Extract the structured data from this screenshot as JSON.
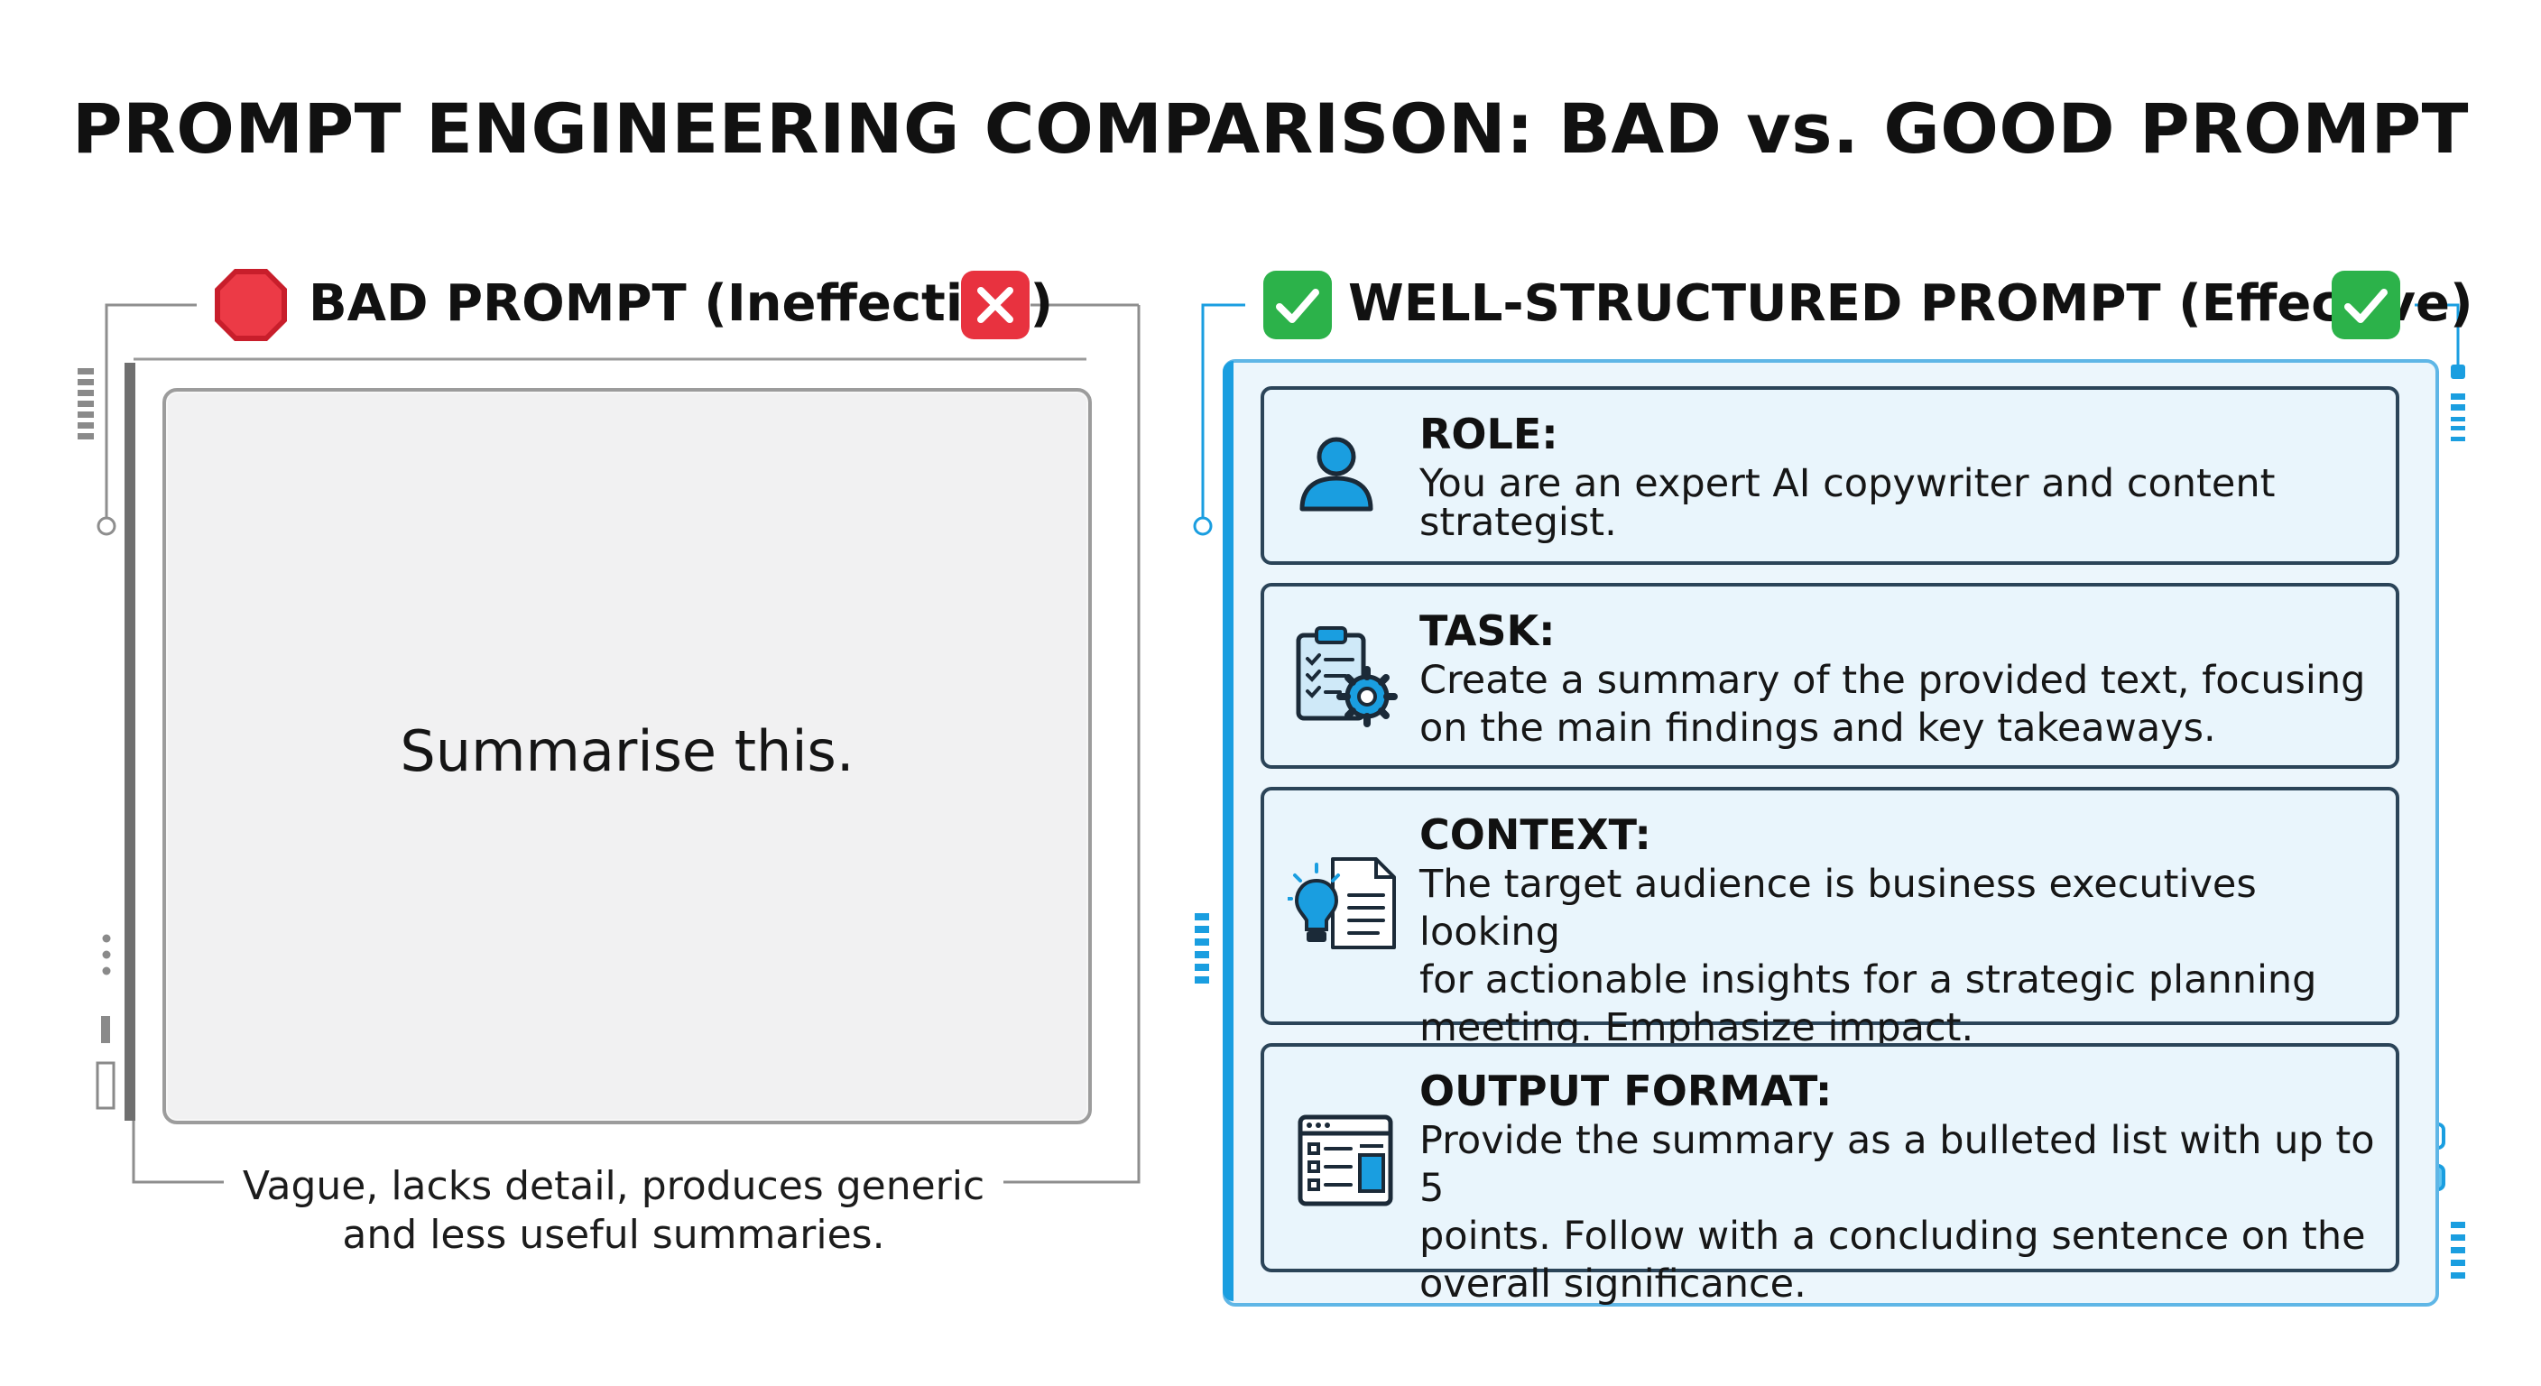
{
  "title": "PROMPT ENGINEERING COMPARISON: BAD vs. GOOD PROMPT",
  "bad_panel": {
    "heading": "BAD PROMPT (Ineffective)",
    "left_icon": "stop-sign-icon",
    "right_icon": "x-mark-icon",
    "prompt_text": "Summarise this.",
    "caption_line1": "Vague, lacks detail, produces generic",
    "caption_line2": "and less useful summaries."
  },
  "good_panel": {
    "heading": "WELL-STRUCTURED PROMPT (Effective)",
    "left_icon": "checkmark-icon",
    "right_icon": "checkmark-icon",
    "sections": [
      {
        "label": "ROLE:",
        "icon": "user-icon",
        "lines": [
          "You are an expert AI copywriter and content",
          "strategist."
        ]
      },
      {
        "label": "TASK:",
        "icon": "clipboard-gear-icon",
        "lines": [
          "Create a summary of the provided text, focusing",
          "on the main findings and key takeaways."
        ]
      },
      {
        "label": "CONTEXT:",
        "icon": "lightbulb-document-icon",
        "lines": [
          "The target audience is business executives looking",
          "for actionable insights for a strategic planning",
          "meeting. Emphasize impact."
        ]
      },
      {
        "label": "OUTPUT FORMAT:",
        "icon": "layout-window-icon",
        "lines": [
          "Provide the summary as a bulleted list with up to 5",
          "points. Follow with a concluding sentence on the",
          "overall significance."
        ]
      }
    ]
  },
  "colors": {
    "bad_red": "#e8323f",
    "good_green": "#2cb24a",
    "accent_blue": "#1a9ee0",
    "card_border": "#2b4458",
    "bad_gray": "#9c9c9c"
  }
}
